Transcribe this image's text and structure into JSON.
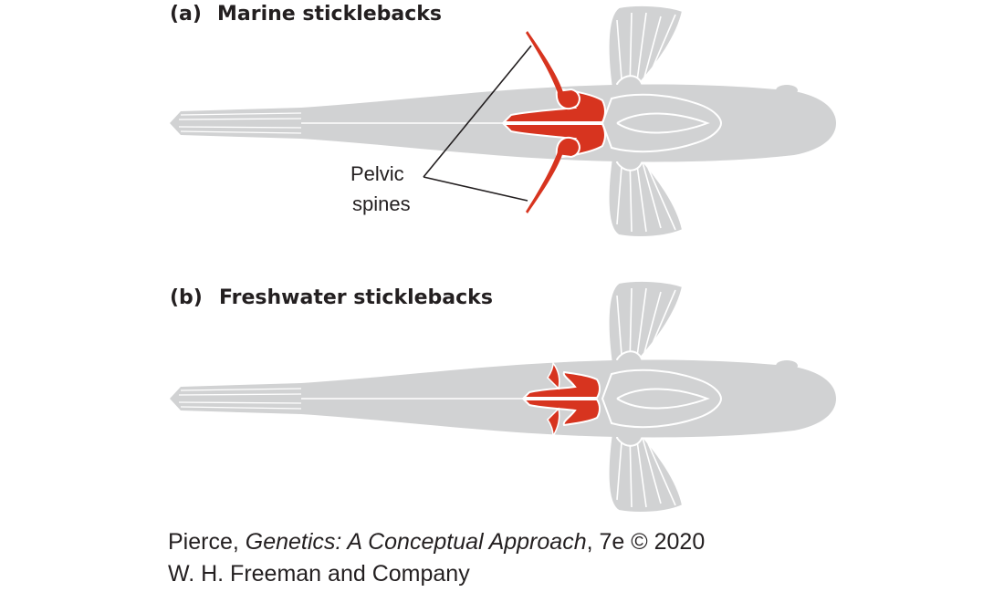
{
  "panels": [
    {
      "label": "(a)",
      "title": "Marine sticklebacks",
      "pelvic_structure": "full pelvis with long spines"
    },
    {
      "label": "(b)",
      "title": "Freshwater sticklebacks",
      "pelvic_structure": "reduced pelvis"
    }
  ],
  "callout": {
    "line1": "Pelvic",
    "line2": "spines"
  },
  "credit": {
    "author": "Pierce, ",
    "book": "Genetics: A Conceptual Approach",
    "edition": ", 7e © 2020",
    "publisher": "W. H. Freeman and Company"
  },
  "colors": {
    "body": "#d1d2d3",
    "pelvis": "#d7341f",
    "outline": "#ffffff",
    "text": "#231f20",
    "leader": "#231f20"
  }
}
